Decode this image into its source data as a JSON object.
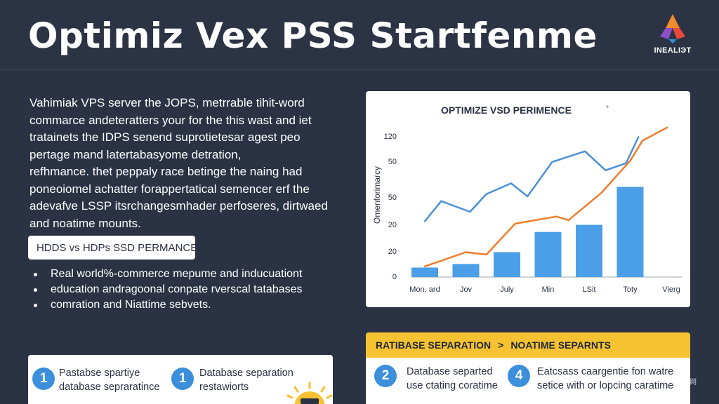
{
  "header": {
    "title": "Optimiz Vex PSS Startfenme",
    "logo_text": "INEALIЭT"
  },
  "intro": {
    "lines": [
      "Vahimiak VPS server the JOPS, metrrable tihit-word",
      "commarce andeteratters your for the this wast and iet",
      "tratainets the IDPS senend suprotietesar agest peo",
      "pertage mand latertabasyome detration,",
      "refhmance. thet peppaly race betinge the naing had",
      "poneoiomel achatter forappertatical semencer erf the",
      "adevafve LSSP itsrchangesmhader perfoseres, dirtwaed",
      "and noatime mounts."
    ]
  },
  "pill": {
    "label": "HDDS vs HDPs SSD PERMANCE"
  },
  "bullets": [
    "Real world%-commerce mepume and inducuationt",
    "education andragoonal conpate rverscal tatabases",
    "comration and Niattime sebvets."
  ],
  "chart_data": {
    "type": "line",
    "title": "OPTIMIZE VSD PERIMENCE",
    "title_mark": "°",
    "ylabel": "Omenforimarcy",
    "xlabel": "",
    "categories": [
      "Mon, ard",
      "Jov",
      "July",
      "Min",
      "LSit",
      "Toty",
      "Vierg"
    ],
    "yticks": [
      "0",
      "20",
      "20",
      "50",
      "50",
      "120"
    ],
    "ylim": [
      0,
      120
    ],
    "colors": {
      "line_blue": "#4a90d9",
      "line_orange": "#f07c2a",
      "bar": "#4a9fe8"
    },
    "bars": [
      {
        "x": 0,
        "value": 8
      },
      {
        "x": 1,
        "value": 11
      },
      {
        "x": 2,
        "value": 21
      },
      {
        "x": 3,
        "value": 38
      },
      {
        "x": 4,
        "value": 44
      },
      {
        "x": 5,
        "value": 76
      }
    ],
    "series": [
      {
        "color": "#4a90d9",
        "points": [
          [
            0,
            47
          ],
          [
            0.4,
            64
          ],
          [
            1.1,
            55
          ],
          [
            1.5,
            70
          ],
          [
            2.1,
            79
          ],
          [
            2.5,
            68
          ],
          [
            3.1,
            97
          ],
          [
            3.9,
            106
          ],
          [
            4.4,
            90
          ],
          [
            4.9,
            96
          ],
          [
            5.2,
            118
          ]
        ]
      },
      {
        "color": "#f07c2a",
        "points": [
          [
            0,
            9
          ],
          [
            1,
            21
          ],
          [
            1.5,
            19
          ],
          [
            2.2,
            45
          ],
          [
            3.2,
            51
          ],
          [
            3.5,
            48
          ],
          [
            4.3,
            71
          ],
          [
            5,
            98
          ],
          [
            5.3,
            115
          ],
          [
            5.9,
            126
          ]
        ]
      }
    ]
  },
  "separation": {
    "left_label": "RATIBASE SEPARATION",
    "arrow": ">",
    "right_label": "NOATIME SEPARNTS"
  },
  "steps": [
    {
      "num": "1",
      "line1": "Pastabse spartiye",
      "line2": "database sepraratince"
    },
    {
      "num": "1",
      "line1": "Database separation",
      "line2": "restawiorts"
    },
    {
      "num": "2",
      "line1": "Database separted",
      "line2": "use ctating coratime"
    },
    {
      "num": "4",
      "line1": "Eatcsass caargentie fon watre",
      "line2": "setice with or lopcing caratime"
    }
  ],
  "watermark": "网"
}
